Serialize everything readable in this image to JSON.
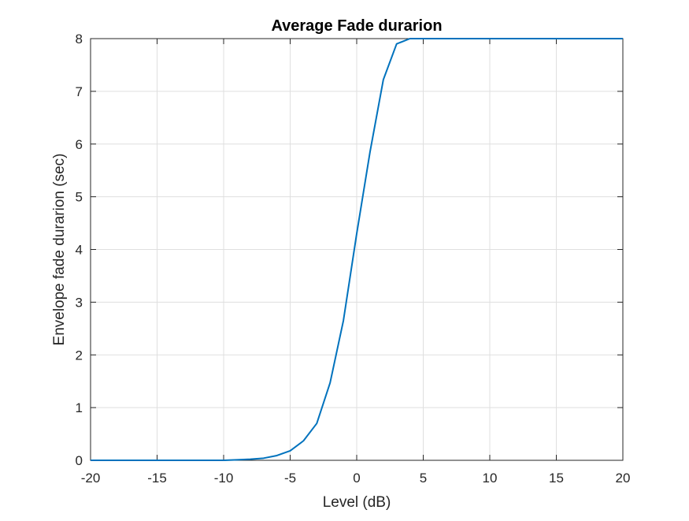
{
  "chart_data": {
    "type": "line",
    "title": "Average Fade durarion",
    "xlabel": "Level (dB)",
    "ylabel": "Envelope fade durarion (sec)",
    "xlim": [
      -20,
      20
    ],
    "ylim": [
      0,
      8
    ],
    "grid": true,
    "x_ticks": [
      -20,
      -15,
      -10,
      -5,
      0,
      5,
      10,
      15,
      20
    ],
    "y_ticks": [
      0,
      1,
      2,
      3,
      4,
      5,
      6,
      7,
      8
    ],
    "x_tick_labels": [
      "-20",
      "-15",
      "-10",
      "-5",
      "0",
      "5",
      "10",
      "15",
      "20"
    ],
    "y_tick_labels": [
      "0",
      "1",
      "2",
      "3",
      "4",
      "5",
      "6",
      "7",
      "8"
    ],
    "series": [
      {
        "color": "#0072BD",
        "x": [
          -20,
          -19,
          -18,
          -17,
          -16,
          -15,
          -14,
          -13,
          -12,
          -11,
          -10,
          -9,
          -8,
          -7,
          -6,
          -5,
          -4,
          -3,
          -2,
          -1,
          0,
          1,
          2,
          3,
          4,
          5,
          6,
          7,
          8,
          9,
          10,
          11,
          12,
          13,
          14,
          15,
          16,
          17,
          18,
          19,
          20
        ],
        "y": [
          0,
          0,
          0,
          0,
          0,
          0,
          0,
          0,
          0,
          0,
          0,
          0.01,
          0.02,
          0.04,
          0.09,
          0.18,
          0.37,
          0.7,
          1.47,
          2.65,
          4.3,
          5.85,
          7.22,
          7.9,
          8,
          8,
          8,
          8,
          8,
          8,
          8,
          8,
          8,
          8,
          8,
          8,
          8,
          8,
          8,
          8,
          8
        ]
      }
    ]
  }
}
